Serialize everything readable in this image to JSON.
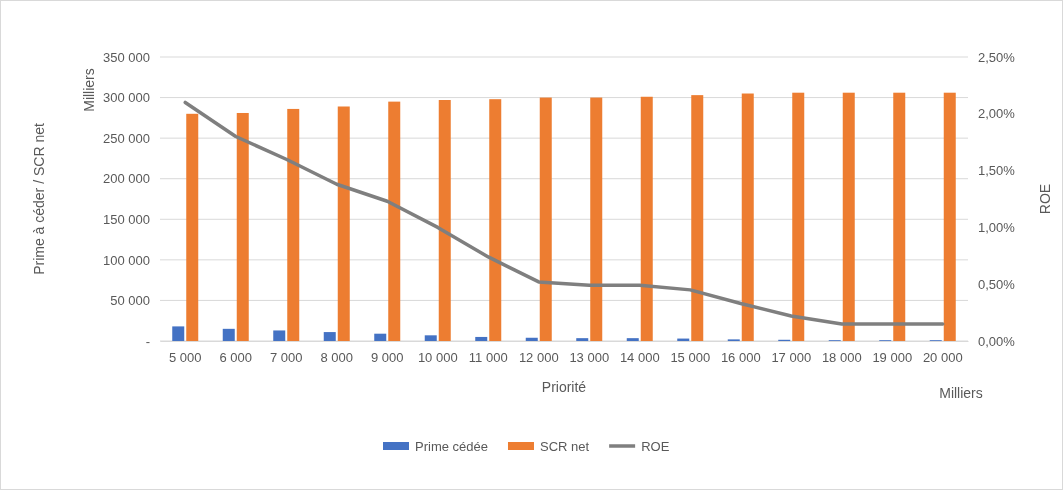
{
  "chart_data": {
    "type": "bar",
    "xlabel": "Priorité",
    "ylabel": "Prime à céder / SCR net",
    "y2label": "ROE",
    "annotations": [
      "Milliers",
      "Milliers"
    ],
    "categories": [
      "5 000",
      "6 000",
      "7 000",
      "8 000",
      "9 000",
      "10 000",
      "11 000",
      "12 000",
      "13 000",
      "14 000",
      "15 000",
      "16 000",
      "17 000",
      "18 000",
      "19 000",
      "20 000"
    ],
    "series": [
      {
        "name": "Prime cédée",
        "color": "#4472c4",
        "values": [
          18000,
          15000,
          13000,
          11000,
          9000,
          7000,
          5000,
          4000,
          3500,
          3500,
          3000,
          2000,
          1500,
          1000,
          1000,
          1000
        ]
      },
      {
        "name": "SCR net",
        "color": "#ed7d31",
        "values": [
          280000,
          281000,
          286000,
          289000,
          295000,
          297000,
          298000,
          300000,
          300000,
          301000,
          303000,
          305000,
          306000,
          306000,
          306000,
          306000
        ]
      },
      {
        "name": "ROE",
        "type": "line",
        "axis": "y2",
        "color": "#7f7f7f",
        "values": [
          2.1,
          1.8,
          1.6,
          1.38,
          1.23,
          1.0,
          0.74,
          0.52,
          0.49,
          0.49,
          0.45,
          0.33,
          0.22,
          0.15,
          0.15,
          0.15
        ]
      }
    ],
    "ylim": [
      0,
      350000
    ],
    "yticks": [
      {
        "value": 0,
        "label": "-"
      },
      {
        "value": 50000,
        "label": "50 000"
      },
      {
        "value": 100000,
        "label": "100 000"
      },
      {
        "value": 150000,
        "label": "150 000"
      },
      {
        "value": 200000,
        "label": "200 000"
      },
      {
        "value": 250000,
        "label": "250 000"
      },
      {
        "value": 300000,
        "label": "300 000"
      },
      {
        "value": 350000,
        "label": "350 000"
      }
    ],
    "y2lim": [
      0,
      2.5
    ],
    "y2ticks": [
      {
        "value": 0,
        "label": "0,00%"
      },
      {
        "value": 0.5,
        "label": "0,50%"
      },
      {
        "value": 1,
        "label": "1,00%"
      },
      {
        "value": 1.5,
        "label": "1,50%"
      },
      {
        "value": 2,
        "label": "2,00%"
      },
      {
        "value": 2.5,
        "label": "2,50%"
      }
    ],
    "grid": "y",
    "legend": "bottom"
  }
}
